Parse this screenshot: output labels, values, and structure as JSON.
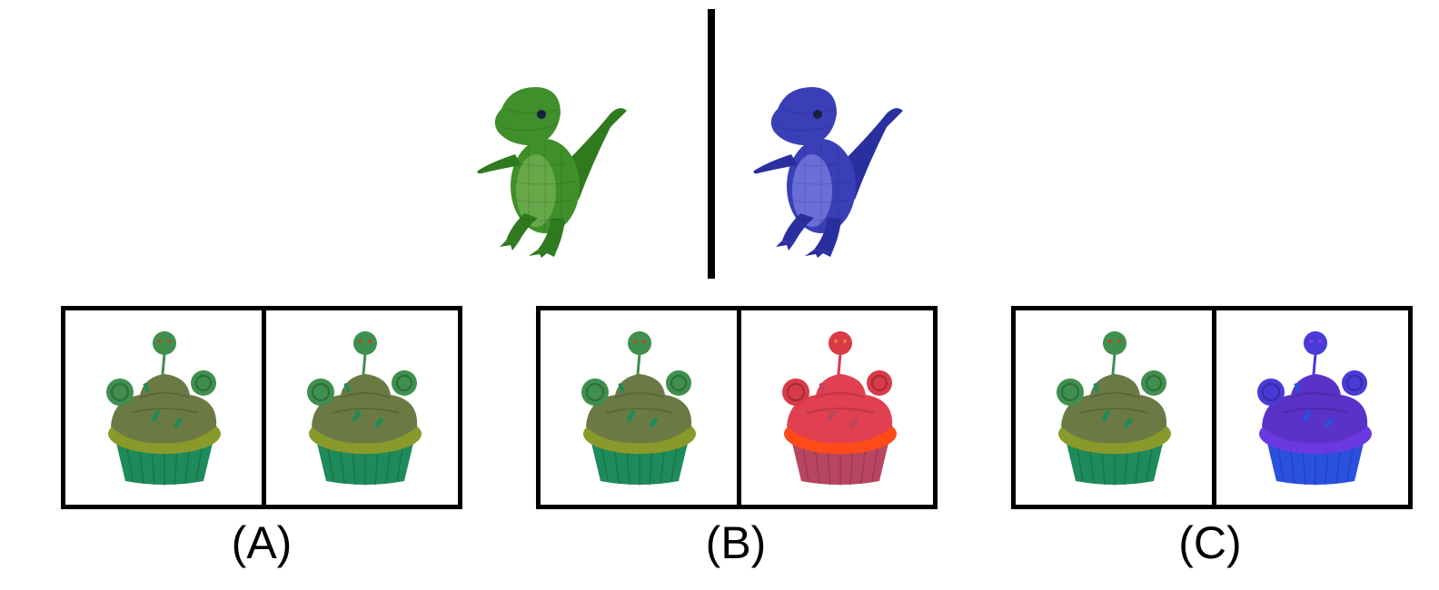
{
  "example": {
    "source_color": "#3f8f2a",
    "target_color": "#3a3fb8",
    "source_icon": "green-dinosaur-icon",
    "target_icon": "blue-dinosaur-icon"
  },
  "options": [
    {
      "label": "(A)",
      "left_icon": "green-cupcake-icon",
      "right_icon": "green-cupcake-icon",
      "left_color": "#5a6b3a",
      "right_color": "#5a6b3a"
    },
    {
      "label": "(B)",
      "left_icon": "green-cupcake-icon",
      "right_icon": "red-cupcake-icon",
      "left_color": "#5a6b3a",
      "right_color": "#d6384a"
    },
    {
      "label": "(C)",
      "left_icon": "green-cupcake-icon",
      "right_icon": "blue-cupcake-icon",
      "left_color": "#5a6b3a",
      "right_color": "#5a32c8"
    }
  ]
}
